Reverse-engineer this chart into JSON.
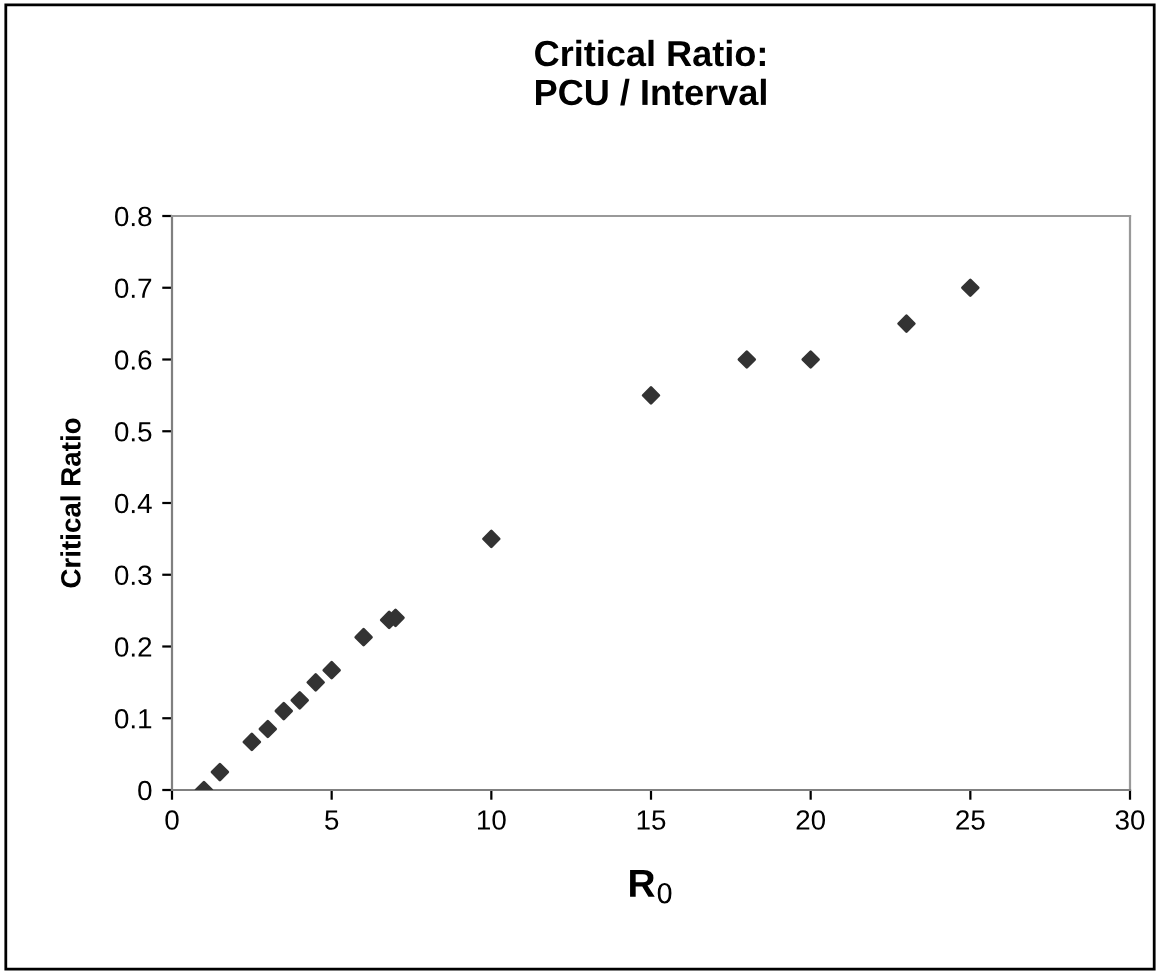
{
  "chart_data": {
    "type": "scatter",
    "title": "Critical Ratio:\nPCU / Interval",
    "xlabel": "R$_{0}$",
    "ylabel": "Critical Ratio",
    "x": [
      1,
      1.5,
      2.5,
      3,
      3.5,
      4,
      4.5,
      5,
      6,
      6.8,
      7,
      10,
      15,
      18,
      20,
      23,
      25
    ],
    "series": [
      {
        "color": "#333333",
        "values": [
          0,
          0.025,
          0.067,
          0.085,
          0.11,
          0.125,
          0.15,
          0.167,
          0.213,
          0.237,
          0.24,
          0.35,
          0.55,
          0.6,
          0.6,
          0.65,
          0.7
        ]
      }
    ],
    "xlim": [
      0,
      30
    ],
    "xticks": [
      0,
      5,
      10,
      15,
      20,
      25,
      30
    ],
    "ylim": [
      0,
      0.8
    ],
    "yticks": [
      0,
      0.1,
      0.2,
      0.3,
      0.4,
      0.5,
      0.6,
      0.7,
      0.8
    ],
    "marker": "diamond",
    "grid": false,
    "legend": false
  }
}
